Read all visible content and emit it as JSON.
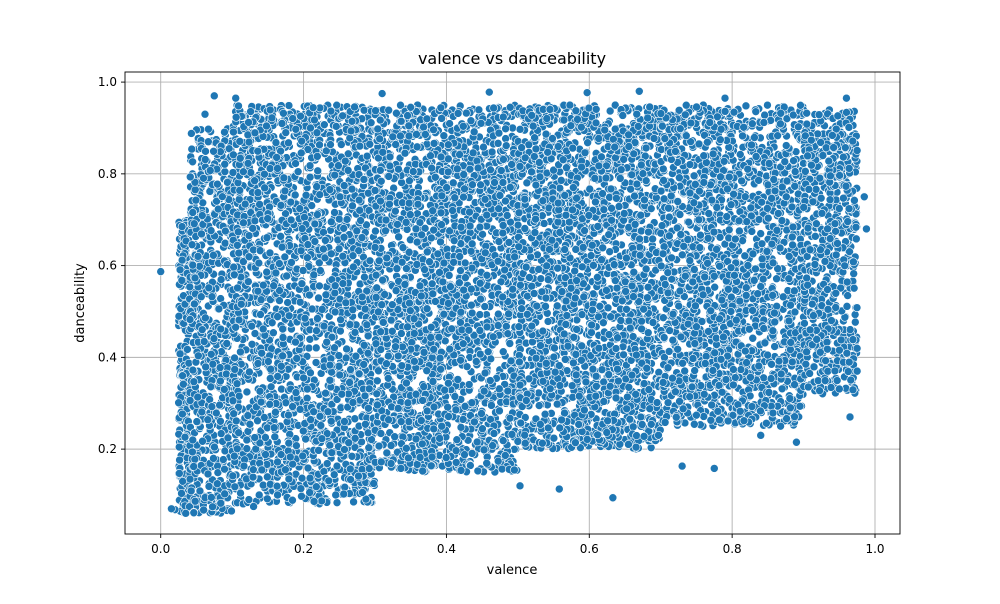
{
  "chart_data": {
    "type": "scatter",
    "title": "valence vs danceability",
    "xlabel": "valence",
    "ylabel": "danceability",
    "xlim": [
      -0.05,
      1.035
    ],
    "ylim": [
      0.015,
      1.022
    ],
    "xticks": [
      0.0,
      0.2,
      0.4,
      0.6,
      0.8,
      1.0
    ],
    "xtick_labels": [
      "0.0",
      "0.2",
      "0.4",
      "0.6",
      "0.8",
      "1.0"
    ],
    "yticks": [
      0.2,
      0.4,
      0.6,
      0.8,
      1.0
    ],
    "ytick_labels": [
      "0.2",
      "0.4",
      "0.6",
      "0.8",
      "1.0"
    ],
    "grid": true,
    "marker_color": "#1f77b4",
    "points": [
      [
        0.0,
        0.587
      ],
      [
        0.03,
        0.612
      ],
      [
        0.075,
        0.97
      ],
      [
        0.31,
        0.975
      ],
      [
        0.46,
        0.978
      ],
      [
        0.67,
        0.98
      ],
      [
        0.597,
        0.977
      ],
      [
        0.79,
        0.965
      ],
      [
        0.96,
        0.965
      ],
      [
        0.985,
        0.75
      ],
      [
        0.988,
        0.68
      ],
      [
        0.975,
        0.37
      ],
      [
        0.965,
        0.27
      ],
      [
        0.89,
        0.215
      ],
      [
        0.775,
        0.158
      ],
      [
        0.633,
        0.094
      ],
      [
        0.558,
        0.113
      ],
      [
        0.503,
        0.12
      ],
      [
        0.27,
        0.085
      ],
      [
        0.02,
        0.068
      ],
      [
        0.035,
        0.06
      ],
      [
        0.13,
        0.075
      ],
      [
        0.245,
        0.1
      ],
      [
        0.73,
        0.163
      ],
      [
        0.84,
        0.23
      ],
      [
        0.062,
        0.93
      ],
      [
        0.015,
        0.07
      ],
      [
        0.105,
        0.965
      ]
    ],
    "density_bands": [
      {
        "x": [
          0.025,
          0.04
        ],
        "y": [
          0.06,
          0.7
        ],
        "n": 260
      },
      {
        "x": [
          0.04,
          0.1
        ],
        "y": [
          0.06,
          0.9
        ],
        "n": 700
      },
      {
        "x": [
          0.1,
          0.3
        ],
        "y": [
          0.08,
          0.95
        ],
        "n": 2200
      },
      {
        "x": [
          0.3,
          0.5
        ],
        "y": [
          0.15,
          0.95
        ],
        "n": 2200
      },
      {
        "x": [
          0.5,
          0.7
        ],
        "y": [
          0.2,
          0.95
        ],
        "n": 2200
      },
      {
        "x": [
          0.7,
          0.9
        ],
        "y": [
          0.25,
          0.95
        ],
        "n": 1900
      },
      {
        "x": [
          0.9,
          0.975
        ],
        "y": [
          0.32,
          0.94
        ],
        "n": 650
      }
    ]
  }
}
